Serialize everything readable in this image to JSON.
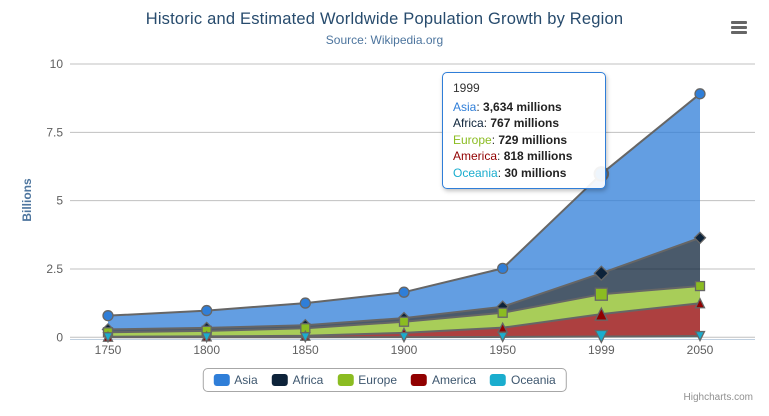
{
  "header": {
    "title": "Historic and Estimated Worldwide Population Growth by Region",
    "subtitle": "Source: Wikipedia.org"
  },
  "menu": {
    "icon": "hamburger-menu-icon"
  },
  "y_axis": {
    "title": "Billions",
    "ticks": [
      "0",
      "2.5",
      "5",
      "7.5",
      "10"
    ]
  },
  "x_axis": {
    "categories": [
      "1750",
      "1800",
      "1850",
      "1900",
      "1950",
      "1999",
      "2050"
    ]
  },
  "tooltip": {
    "header": "1999",
    "category_index": 5,
    "rows": [
      {
        "name": "Asia",
        "value": "3,634 millions"
      },
      {
        "name": "Africa",
        "value": "767 millions"
      },
      {
        "name": "Europe",
        "value": "729 millions"
      },
      {
        "name": "America",
        "value": "818 millions"
      },
      {
        "name": "Oceania",
        "value": "30 millions"
      }
    ]
  },
  "credits": {
    "label": "Highcharts.com"
  },
  "colors": {
    "title": "#274b6d",
    "subtitle": "#4d759e",
    "axis_labels": "#606060",
    "grid_line": "#C0C0C0",
    "axis_line": "#C0D0E0",
    "series_outline": "#666666",
    "legend_text": "#3E576F"
  },
  "chart_data": {
    "type": "area",
    "stacking": "normal",
    "title": "Historic and Estimated Worldwide Population Growth by Region",
    "subtitle": "Source: Wikipedia.org",
    "xlabel": "",
    "ylabel": "Billions",
    "ylim": [
      0,
      10
    ],
    "grid": "horizontal",
    "legend_position": "bottom",
    "value_unit": "millions",
    "categories": [
      "1750",
      "1800",
      "1850",
      "1900",
      "1950",
      "1999",
      "2050"
    ],
    "series": [
      {
        "name": "Asia",
        "color": "#2f7ed8",
        "marker": "circle",
        "values_millions": [
          502,
          635,
          809,
          947,
          1402,
          3634,
          5268
        ]
      },
      {
        "name": "Africa",
        "color": "#0d233a",
        "marker": "diamond",
        "values_millions": [
          106,
          107,
          111,
          133,
          221,
          767,
          1766
        ]
      },
      {
        "name": "Europe",
        "color": "#8bbc21",
        "marker": "square",
        "values_millions": [
          163,
          203,
          276,
          408,
          547,
          729,
          628
        ]
      },
      {
        "name": "America",
        "color": "#910000",
        "marker": "triangle",
        "values_millions": [
          18,
          31,
          54,
          156,
          339,
          818,
          1201
        ]
      },
      {
        "name": "Oceania",
        "color": "#1aadce",
        "marker": "triangle-down",
        "values_millions": [
          2,
          2,
          2,
          6,
          13,
          30,
          46
        ]
      }
    ]
  }
}
